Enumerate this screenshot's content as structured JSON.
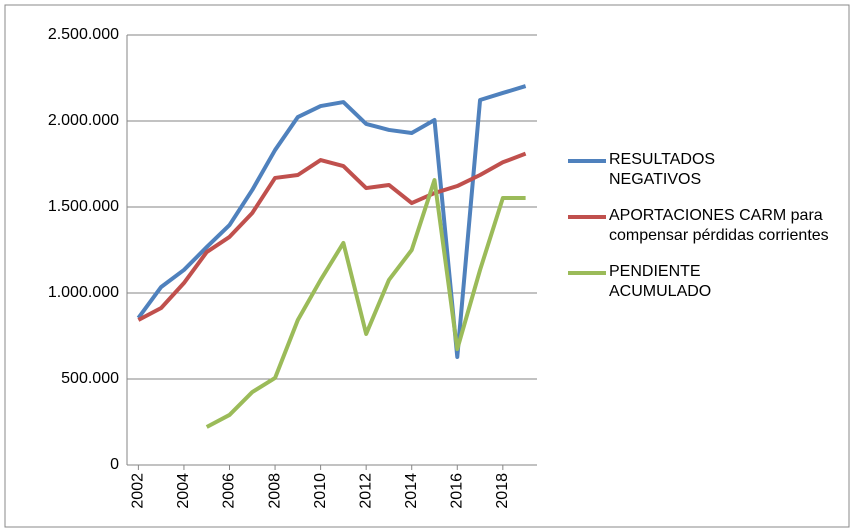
{
  "chart_data": {
    "type": "line",
    "x": [
      2002,
      2003,
      2004,
      2005,
      2006,
      2007,
      2008,
      2009,
      2010,
      2011,
      2012,
      2013,
      2014,
      2015,
      2016,
      2017,
      2018,
      2019
    ],
    "xlim": [
      2001.5,
      2019.5
    ],
    "xticks": [
      2002,
      2004,
      2006,
      2008,
      2010,
      2012,
      2014,
      2016,
      2018
    ],
    "ylim": [
      0,
      2500000
    ],
    "yticks": [
      0,
      {
        "value": 500000,
        "label": "500.000"
      },
      {
        "value": 1000000,
        "label": "1.000.000"
      },
      {
        "value": 1500000,
        "label": "1.500.000"
      },
      {
        "value": 2000000,
        "label": "2.000.000"
      },
      {
        "value": 2500000,
        "label": "2.500.000"
      }
    ],
    "grid": true,
    "legend": "right",
    "series": [
      {
        "name": "RESULTADOS NEGATIVOS",
        "color": "#4f81bd",
        "values": [
          855000,
          1035000,
          1134000,
          1267000,
          1395000,
          1599000,
          1831000,
          2023000,
          2087000,
          2110000,
          1983000,
          1948000,
          1930000,
          2006000,
          628000,
          2122000,
          2163000,
          2203000
        ]
      },
      {
        "name": "APORTACIONES CARM para compensar pérdidas corrientes",
        "color": "#c0504d",
        "values": [
          843000,
          913000,
          1058000,
          1238000,
          1326000,
          1465000,
          1669000,
          1686000,
          1773000,
          1738000,
          1610000,
          1628000,
          1523000,
          1581000,
          1622000,
          1686000,
          1760000,
          1810000
        ]
      },
      {
        "name": "PENDIENTE ACUMULADO",
        "color": "#9bbb59",
        "values": [
          null,
          null,
          null,
          221000,
          291000,
          424000,
          506000,
          843000,
          1076000,
          1291000,
          762000,
          1076000,
          1250000,
          1657000,
          674000,
          1134000,
          1552000,
          1552000
        ]
      }
    ]
  }
}
